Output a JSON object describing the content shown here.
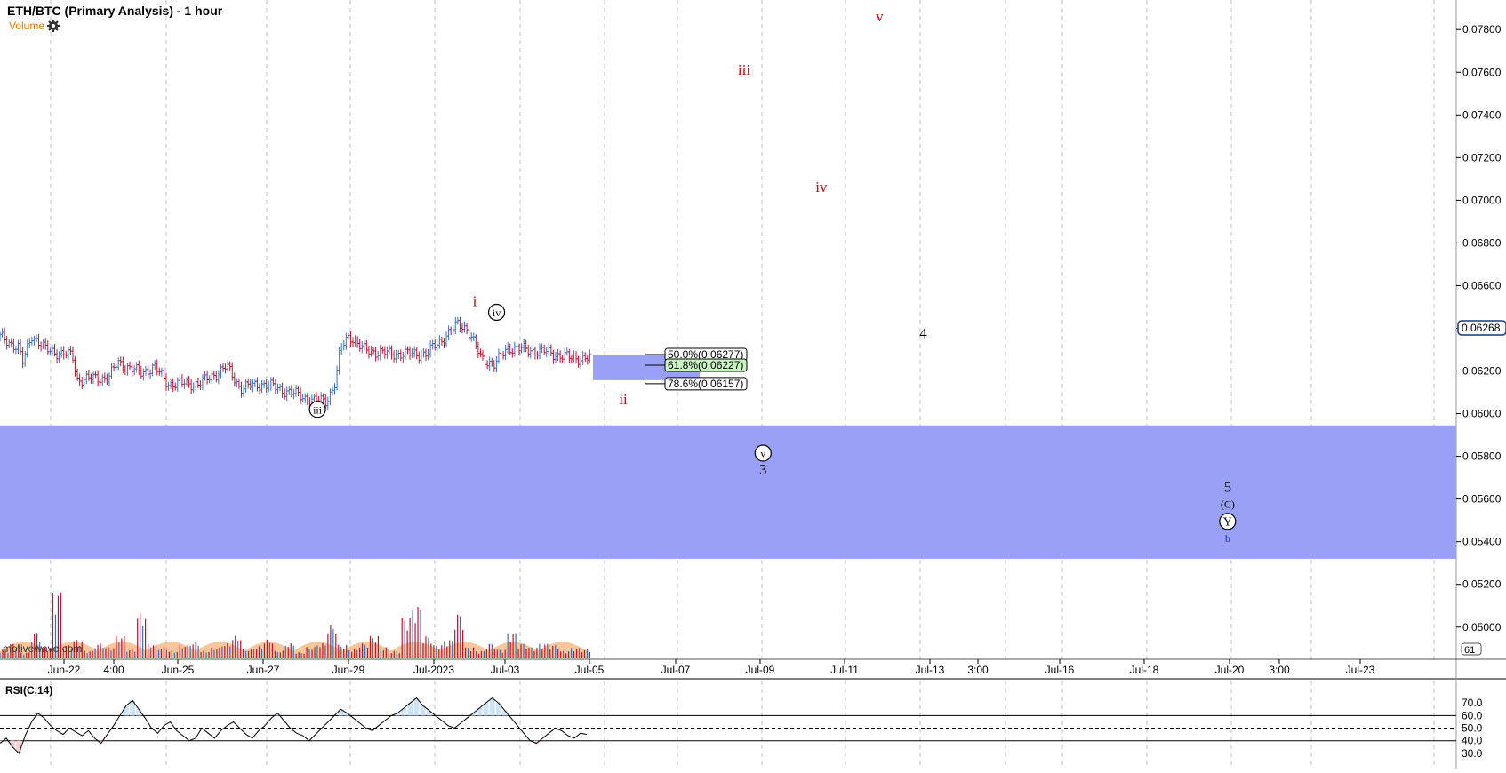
{
  "header": {
    "title": "ETH/BTC (Primary Analysis) - 1 hour",
    "volume_label": "Volume"
  },
  "colors": {
    "zone": "#9aa0f5",
    "up_bar": "#3a6fc4",
    "down_bar": "#c8102e",
    "wave_red": "#d40000",
    "wave_black": "#000000",
    "rsi_overbought_fill": "#cfe3f7",
    "rsi_oversold_fill": "#f5d0d6",
    "volume_area": "#f4b37a",
    "fib_green": "#c9f5c2"
  },
  "chart_data": [
    {
      "type": "candlestick",
      "title": "ETH/BTC (Primary Analysis) - 1 hour",
      "xlabel": "",
      "ylabel": "",
      "x_ticks": [
        "Jun-22",
        "4:00",
        "Jun-25",
        "Jun-27",
        "Jun-29",
        "Jul-2023",
        "Jul-03",
        "Jul-05",
        "Jul-07",
        "Jul-09",
        "Jul-11",
        "Jul-13",
        "3:00",
        "Jul-16",
        "Jul-18",
        "Jul-20",
        "3:00",
        "Jul-23"
      ],
      "y_ticks": [
        "0.07800",
        "0.07600",
        "0.07400",
        "0.07200",
        "0.07000",
        "0.06800",
        "0.06600",
        "0.06400",
        "0.06200",
        "0.06000",
        "0.05800",
        "0.05600",
        "0.05400",
        "0.05200",
        "0.05000"
      ],
      "ylim": [
        0.0494,
        0.0793
      ],
      "last_price": "0.06268",
      "grid": true,
      "price_path": [
        [
          0,
          0.0636
        ],
        [
          0.02,
          0.0631
        ],
        [
          0.025,
          0.0624
        ],
        [
          0.035,
          0.0637
        ],
        [
          0.05,
          0.063
        ],
        [
          0.08,
          0.0627
        ],
        [
          0.085,
          0.0616
        ],
        [
          0.12,
          0.0617
        ],
        [
          0.13,
          0.0624
        ],
        [
          0.155,
          0.0619
        ],
        [
          0.17,
          0.0622
        ],
        [
          0.185,
          0.0614
        ],
        [
          0.22,
          0.0614
        ],
        [
          0.25,
          0.0622
        ],
        [
          0.265,
          0.0612
        ],
        [
          0.29,
          0.0614
        ],
        [
          0.32,
          0.061
        ],
        [
          0.345,
          0.0606
        ],
        [
          0.36,
          0.0606
        ],
        [
          0.37,
          0.0615
        ],
        [
          0.375,
          0.063
        ],
        [
          0.385,
          0.0637
        ],
        [
          0.4,
          0.063
        ],
        [
          0.43,
          0.0628
        ],
        [
          0.47,
          0.0628
        ],
        [
          0.49,
          0.0636
        ],
        [
          0.505,
          0.0642
        ],
        [
          0.515,
          0.064
        ],
        [
          0.53,
          0.0626
        ],
        [
          0.545,
          0.0623
        ],
        [
          0.56,
          0.0631
        ],
        [
          0.6,
          0.0629
        ],
        [
          0.63,
          0.0626
        ],
        [
          0.65,
          0.0626
        ]
      ],
      "target_zones": [
        {
          "name": "ii-box",
          "y_top": 0.06277,
          "y_bottom": 0.06157
        },
        {
          "name": "c-wave-support",
          "y_top": 0.05945,
          "y_bottom": 0.0532
        }
      ],
      "fib_labels": [
        {
          "pct": "50.0%",
          "value": "(0.06277)",
          "price": 0.06277
        },
        {
          "pct": "61.8%",
          "value": "(0.06227)",
          "price": 0.06227
        },
        {
          "pct": "78.6%",
          "value": "(0.06157)",
          "price": 0.06157
        }
      ],
      "wave_labels": [
        {
          "text": "i",
          "style": "red",
          "x_frac": 0.326,
          "y": 0.06525
        },
        {
          "text": "ii",
          "style": "red",
          "x_frac": 0.428,
          "y": 0.06065
        },
        {
          "text": "iii",
          "style": "red",
          "x_frac": 0.511,
          "y": 0.0761
        },
        {
          "text": "iv",
          "style": "red",
          "x_frac": 0.564,
          "y": 0.0706
        },
        {
          "text": "v",
          "style": "red",
          "x_frac": 0.604,
          "y": 0.0786
        },
        {
          "text": "iii",
          "style": "circle",
          "x_frac": 0.218,
          "y": 0.0602
        },
        {
          "text": "iv",
          "style": "circle",
          "x_frac": 0.341,
          "y": 0.06475
        },
        {
          "text": "v",
          "style": "circle",
          "x_frac": 0.524,
          "y": 0.05815
        },
        {
          "text": "3",
          "style": "black",
          "x_frac": 0.524,
          "y": 0.05735
        },
        {
          "text": "4",
          "style": "black",
          "x_frac": 0.634,
          "y": 0.06375
        },
        {
          "text": "5",
          "style": "black",
          "x_frac": 0.843,
          "y": 0.05655
        },
        {
          "text": "(C)",
          "style": "small",
          "x_frac": 0.843,
          "y": 0.0558
        },
        {
          "text": "Y",
          "style": "circle",
          "x_frac": 0.843,
          "y": 0.05495
        },
        {
          "text": "b",
          "style": "blue",
          "x_frac": 0.843,
          "y": 0.0542
        }
      ]
    },
    {
      "type": "bar",
      "title": "Volume",
      "x_span": [
        0,
        0.405
      ],
      "max_tick": "61",
      "bars": [
        0.12,
        0.2,
        0.08,
        0.35,
        0.15,
        0.9,
        0.18,
        0.25,
        0.1,
        0.2,
        0.15,
        0.3,
        0.12,
        0.6,
        0.2,
        0.15,
        0.1,
        0.18,
        0.22,
        0.1,
        0.14,
        0.2,
        0.3,
        0.12,
        0.16,
        0.25,
        0.1,
        0.2,
        0.08,
        0.15,
        0.2,
        0.45,
        0.18,
        0.12,
        0.2,
        0.3,
        0.15,
        0.1,
        0.55,
        0.7,
        0.3,
        0.18,
        0.25,
        0.6,
        0.15,
        0.1,
        0.2,
        0.12,
        0.35,
        0.2,
        0.15,
        0.2,
        0.18,
        0.1,
        0.14,
        0.12
      ]
    },
    {
      "type": "line",
      "title": "RSI(C,14)",
      "y_ticks": [
        "70.0",
        "60.0",
        "50.0",
        "40.0",
        "30.0"
      ],
      "ylim": [
        20,
        85
      ],
      "levels": [
        60,
        50,
        40
      ],
      "series": [
        {
          "values": [
            38,
            42,
            35,
            30,
            44,
            55,
            62,
            58,
            52,
            48,
            45,
            50,
            47,
            44,
            48,
            42,
            38,
            45,
            52,
            60,
            68,
            72,
            65,
            58,
            50,
            46,
            52,
            55,
            48,
            44,
            40,
            42,
            50,
            46,
            42,
            48,
            52,
            55,
            50,
            45,
            42,
            48,
            52,
            58,
            62,
            56,
            50,
            46,
            44,
            40,
            45,
            50,
            55,
            60,
            65,
            62,
            58,
            54,
            50,
            48,
            52,
            56,
            60,
            62,
            66,
            70,
            74,
            68,
            64,
            60,
            56,
            52,
            50,
            54,
            58,
            62,
            66,
            70,
            74,
            70,
            64,
            58,
            52,
            46,
            40,
            38,
            42,
            46,
            50,
            48,
            44,
            42,
            46,
            45
          ]
        }
      ]
    }
  ]
}
